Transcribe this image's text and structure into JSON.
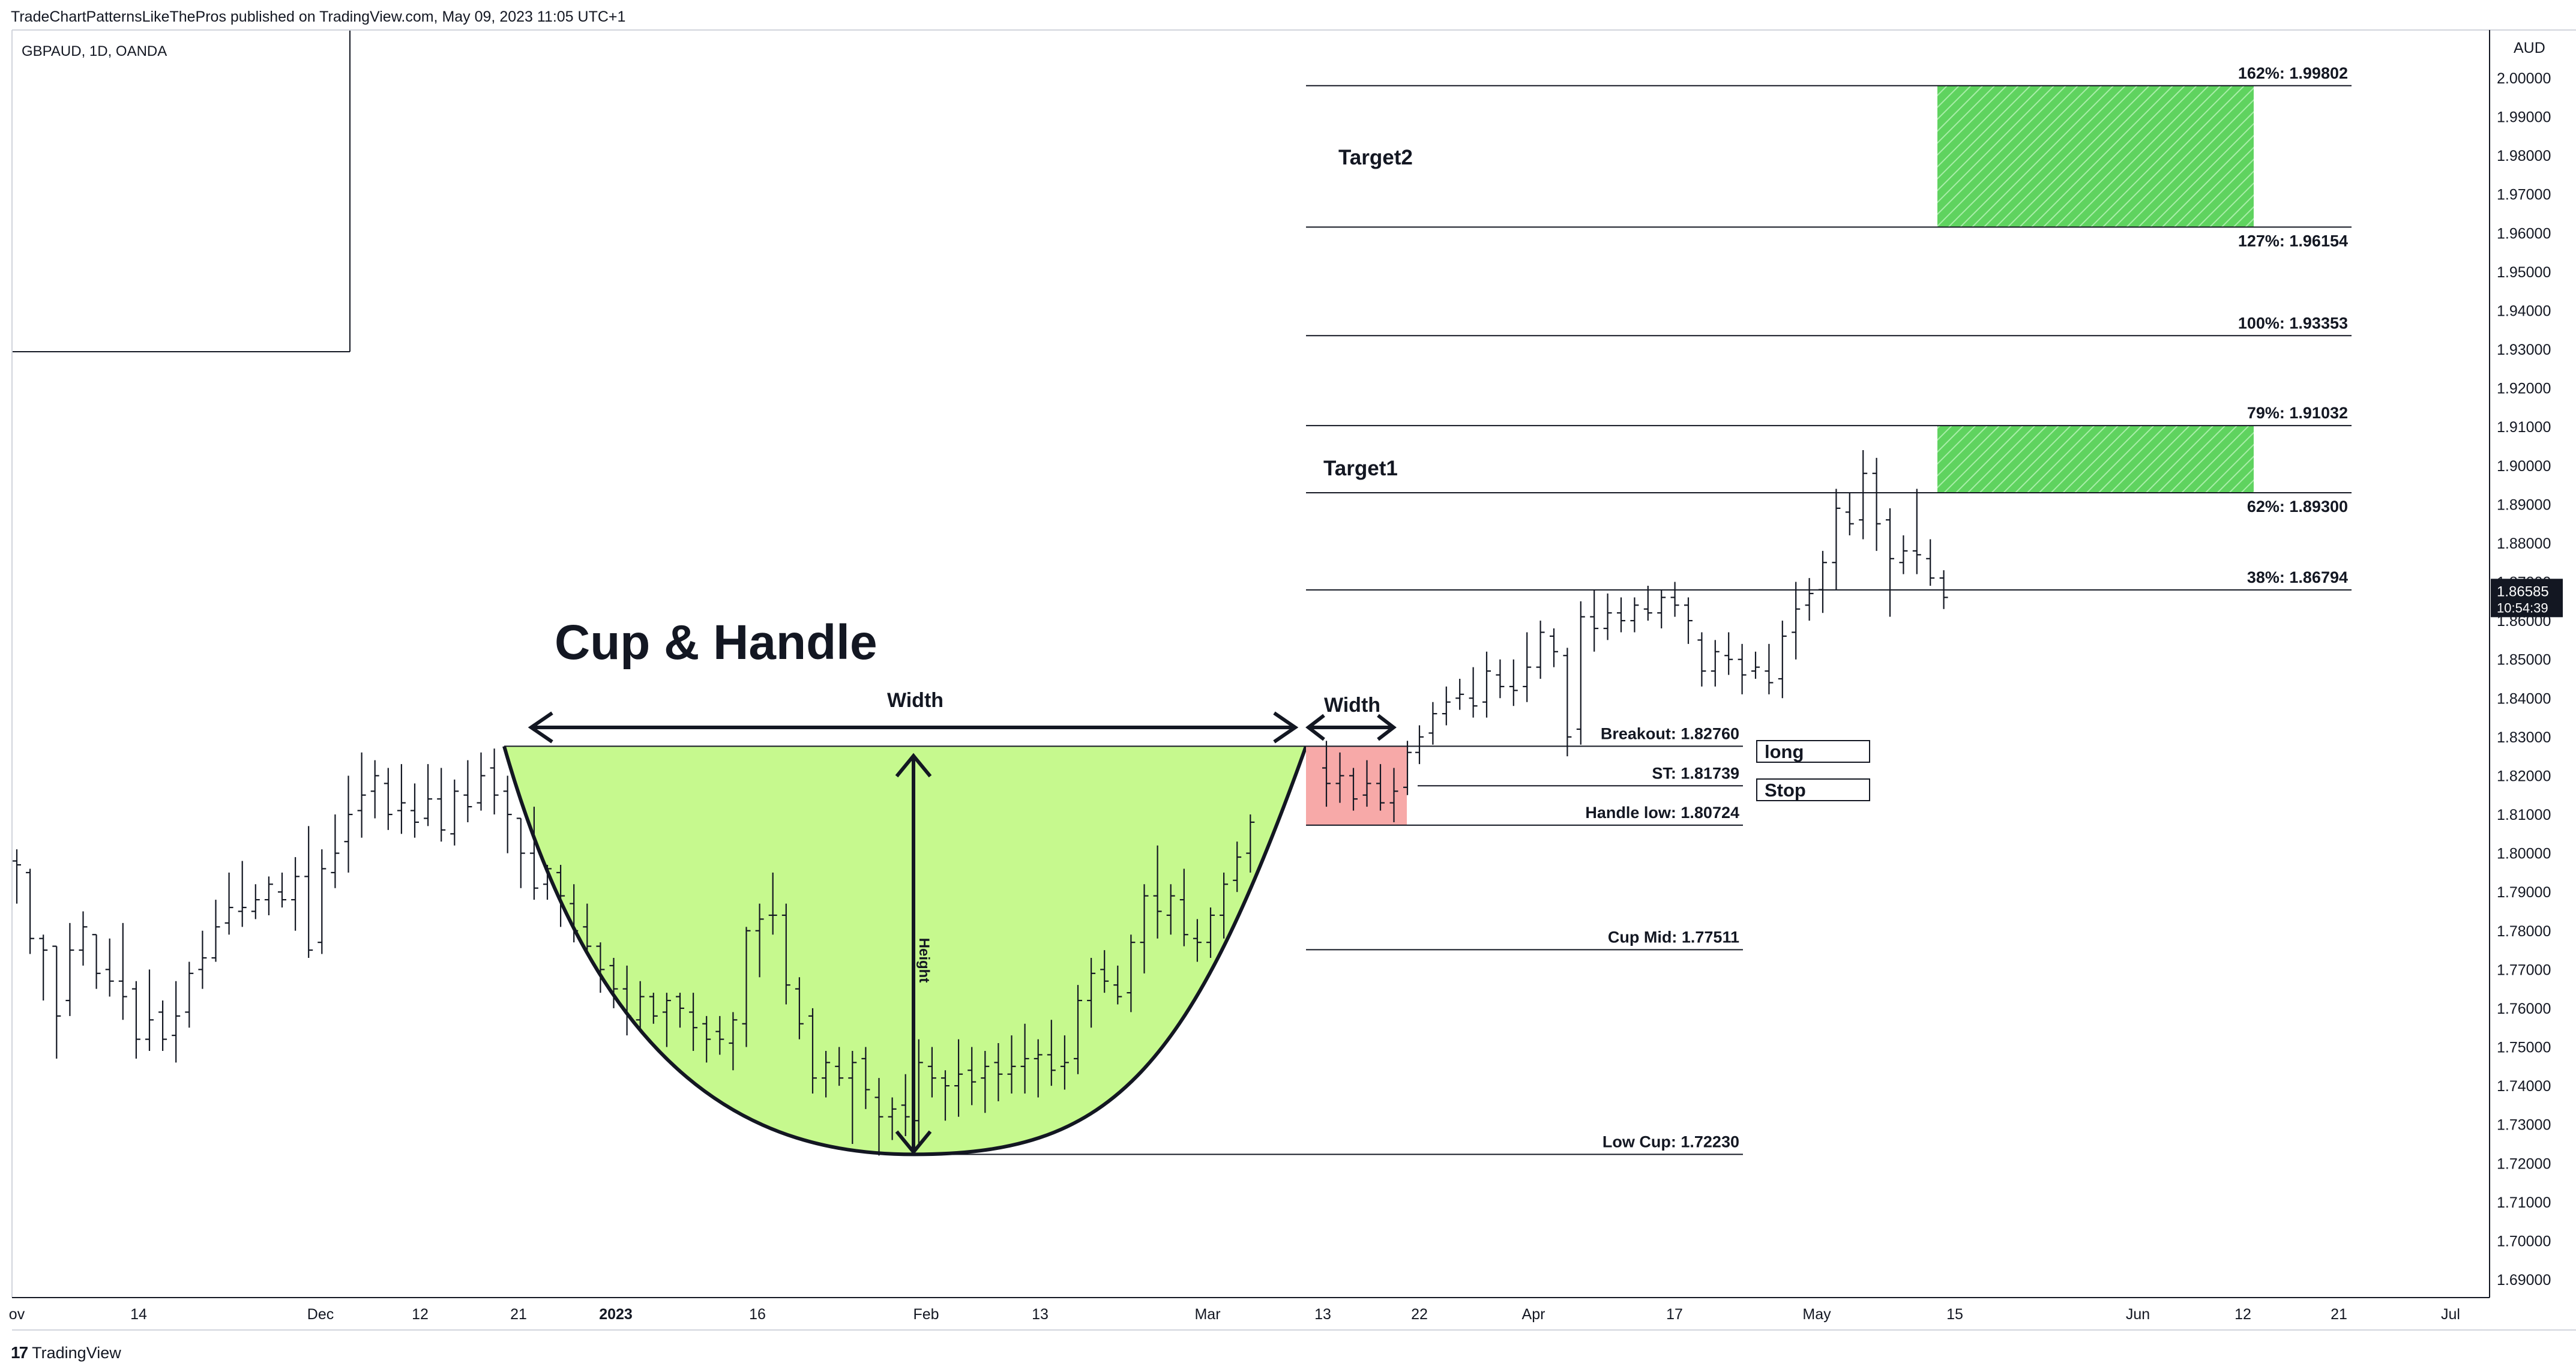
{
  "header": {
    "published_by": "TradeChartPatternsLikeThePros published on TradingView.com, May 09, 2023 11:05 UTC+1"
  },
  "symbol": "GBPAUD, 1D, OANDA",
  "footer": {
    "logo_text": "TradingView",
    "logo_icon": "tradingview-logo-icon"
  },
  "colors": {
    "cup_fill": "#c6f98e",
    "handle_fill": "#f7a9a8",
    "target_fill": "#5fd35f",
    "bar": "#131722",
    "price_badge": "#131722"
  },
  "chart_data": {
    "type": "bar",
    "title": "Cup & Handle",
    "currency": "AUD",
    "ylim": [
      1.68,
      2.01
    ],
    "y_ticks": [
      1.69,
      1.7,
      1.71,
      1.72,
      1.73,
      1.74,
      1.75,
      1.76,
      1.77,
      1.78,
      1.79,
      1.8,
      1.81,
      1.82,
      1.83,
      1.84,
      1.85,
      1.86,
      1.87,
      1.88,
      1.89,
      1.9,
      1.91,
      1.92,
      1.93,
      1.94,
      1.95,
      1.96,
      1.97,
      1.98,
      1.99,
      2.0
    ],
    "y_tick_labels": [
      "1.69000",
      "1.70000",
      "1.71000",
      "1.72000",
      "1.73000",
      "1.74000",
      "1.75000",
      "1.76000",
      "1.77000",
      "1.78000",
      "1.79000",
      "1.80000",
      "1.81000",
      "1.82000",
      "1.83000",
      "1.84000",
      "1.85000",
      "1.86000",
      "1.87000",
      "1.88000",
      "1.89000",
      "1.90000",
      "1.91000",
      "1.92000",
      "1.93000",
      "1.94000",
      "1.95000",
      "1.96000",
      "1.97000",
      "1.98000",
      "1.99000",
      "2.00000"
    ],
    "x_ticks": [
      {
        "label": "ov",
        "bold": false
      },
      {
        "label": "14",
        "bold": false
      },
      {
        "label": "Dec",
        "bold": false
      },
      {
        "label": "12",
        "bold": false
      },
      {
        "label": "21",
        "bold": false
      },
      {
        "label": "2023",
        "bold": true
      },
      {
        "label": "16",
        "bold": false
      },
      {
        "label": "Feb",
        "bold": false
      },
      {
        "label": "13",
        "bold": false
      },
      {
        "label": "Mar",
        "bold": false
      },
      {
        "label": "13",
        "bold": false
      },
      {
        "label": "22",
        "bold": false
      },
      {
        "label": "Apr",
        "bold": false
      },
      {
        "label": "17",
        "bold": false
      },
      {
        "label": "May",
        "bold": false
      },
      {
        "label": "15",
        "bold": false
      },
      {
        "label": "Jun",
        "bold": false
      },
      {
        "label": "12",
        "bold": false
      },
      {
        "label": "21",
        "bold": false
      },
      {
        "label": "Jul",
        "bold": false
      }
    ],
    "last_price": "1.86585",
    "countdown": "10:54:39",
    "levels": [
      {
        "label": "162%: 1.99802",
        "value": 1.99802
      },
      {
        "label": "127%: 1.96154",
        "value": 1.96154
      },
      {
        "label": "100%: 1.93353",
        "value": 1.93353
      },
      {
        "label": "79%: 1.91032",
        "value": 1.91032
      },
      {
        "label": "62%: 1.89300",
        "value": 1.893
      },
      {
        "label": "38%: 1.86794",
        "value": 1.86794
      },
      {
        "label": "Breakout: 1.82760",
        "value": 1.8276
      },
      {
        "label": "ST: 1.81739",
        "value": 1.81739
      },
      {
        "label": "Handle low: 1.80724",
        "value": 1.80724
      },
      {
        "label": "Cup Mid: 1.77511",
        "value": 1.77511
      },
      {
        "label": "Low Cup: 1.72230",
        "value": 1.7223
      }
    ],
    "annotations": {
      "target1": "Target1",
      "target2": "Target2",
      "long": "long",
      "stop": "Stop",
      "cup_width": "Width",
      "handle_width": "Width",
      "height": "Height"
    },
    "bars": [
      [
        1.798,
        1.787,
        1.801,
        1.797
      ],
      [
        1.795,
        1.774,
        1.796,
        1.778
      ],
      [
        1.778,
        1.762,
        1.779,
        1.775
      ],
      [
        1.776,
        1.747,
        1.776,
        1.758
      ],
      [
        1.762,
        1.758,
        1.782,
        1.775
      ],
      [
        1.775,
        1.771,
        1.785,
        1.781
      ],
      [
        1.779,
        1.765,
        1.779,
        1.769
      ],
      [
        1.77,
        1.763,
        1.778,
        1.767
      ],
      [
        1.767,
        1.757,
        1.782,
        1.763
      ],
      [
        1.765,
        1.747,
        1.767,
        1.752
      ],
      [
        1.752,
        1.749,
        1.77,
        1.757
      ],
      [
        1.759,
        1.749,
        1.762,
        1.752
      ],
      [
        1.753,
        1.746,
        1.767,
        1.758
      ],
      [
        1.759,
        1.755,
        1.772,
        1.769
      ],
      [
        1.77,
        1.765,
        1.78,
        1.773
      ],
      [
        1.773,
        1.772,
        1.788,
        1.781
      ],
      [
        1.782,
        1.779,
        1.795,
        1.786
      ],
      [
        1.785,
        1.781,
        1.798,
        1.786
      ],
      [
        1.785,
        1.783,
        1.792,
        1.788
      ],
      [
        1.788,
        1.784,
        1.794,
        1.792
      ],
      [
        1.79,
        1.786,
        1.795,
        1.788
      ],
      [
        1.788,
        1.78,
        1.799,
        1.794
      ],
      [
        1.794,
        1.773,
        1.807,
        1.775
      ],
      [
        1.777,
        1.774,
        1.801,
        1.796
      ],
      [
        1.795,
        1.791,
        1.81,
        1.8
      ],
      [
        1.803,
        1.795,
        1.82,
        1.81
      ],
      [
        1.811,
        1.804,
        1.826,
        1.815
      ],
      [
        1.816,
        1.809,
        1.824,
        1.82
      ],
      [
        1.818,
        1.806,
        1.822,
        1.81
      ],
      [
        1.811,
        1.805,
        1.823,
        1.813
      ],
      [
        1.811,
        1.804,
        1.818,
        1.808
      ],
      [
        1.809,
        1.807,
        1.823,
        1.814
      ],
      [
        1.814,
        1.803,
        1.822,
        1.806
      ],
      [
        1.805,
        1.802,
        1.819,
        1.816
      ],
      [
        1.815,
        1.808,
        1.824,
        1.812
      ],
      [
        1.813,
        1.811,
        1.826,
        1.82
      ],
      [
        1.822,
        1.81,
        1.827,
        1.815
      ],
      [
        1.816,
        1.8,
        1.82,
        1.81
      ],
      [
        1.809,
        1.791,
        1.809,
        1.8
      ],
      [
        1.8,
        1.788,
        1.812,
        1.791
      ],
      [
        1.792,
        1.788,
        1.797,
        1.796
      ],
      [
        1.795,
        1.781,
        1.797,
        1.789
      ],
      [
        1.787,
        1.777,
        1.792,
        1.78
      ],
      [
        1.781,
        1.774,
        1.787,
        1.776
      ],
      [
        1.776,
        1.764,
        1.777,
        1.77
      ],
      [
        1.771,
        1.76,
        1.773,
        1.765
      ],
      [
        1.765,
        1.753,
        1.771,
        1.758
      ],
      [
        1.757,
        1.754,
        1.767,
        1.763
      ],
      [
        1.763,
        1.756,
        1.764,
        1.758
      ],
      [
        1.759,
        1.75,
        1.764,
        1.762
      ],
      [
        1.763,
        1.755,
        1.764,
        1.76
      ],
      [
        1.759,
        1.749,
        1.764,
        1.755
      ],
      [
        1.756,
        1.746,
        1.758,
        1.752
      ],
      [
        1.754,
        1.748,
        1.758,
        1.752
      ],
      [
        1.751,
        1.744,
        1.759,
        1.757
      ],
      [
        1.756,
        1.75,
        1.781,
        1.78
      ],
      [
        1.78,
        1.768,
        1.787,
        1.783
      ],
      [
        1.784,
        1.779,
        1.795,
        1.784
      ],
      [
        1.784,
        1.761,
        1.787,
        1.766
      ],
      [
        1.765,
        1.752,
        1.768,
        1.756
      ],
      [
        1.758,
        1.738,
        1.76,
        1.742
      ],
      [
        1.742,
        1.737,
        1.749,
        1.746
      ],
      [
        1.745,
        1.74,
        1.75,
        1.742
      ],
      [
        1.742,
        1.725,
        1.749,
        1.746
      ],
      [
        1.747,
        1.734,
        1.75,
        1.739
      ],
      [
        1.737,
        1.722,
        1.742,
        1.732
      ],
      [
        1.732,
        1.726,
        1.737,
        1.734
      ],
      [
        1.735,
        1.727,
        1.743,
        1.732
      ],
      [
        1.731,
        1.725,
        1.752,
        1.746
      ],
      [
        1.745,
        1.737,
        1.75,
        1.742
      ],
      [
        1.742,
        1.731,
        1.744,
        1.74
      ],
      [
        1.74,
        1.732,
        1.752,
        1.743
      ],
      [
        1.744,
        1.735,
        1.75,
        1.741
      ],
      [
        1.742,
        1.733,
        1.749,
        1.745
      ],
      [
        1.746,
        1.736,
        1.751,
        1.743
      ],
      [
        1.743,
        1.738,
        1.753,
        1.745
      ],
      [
        1.745,
        1.738,
        1.756,
        1.747
      ],
      [
        1.747,
        1.737,
        1.752,
        1.748
      ],
      [
        1.748,
        1.74,
        1.757,
        1.744
      ],
      [
        1.745,
        1.739,
        1.753,
        1.746
      ],
      [
        1.747,
        1.743,
        1.766,
        1.762
      ],
      [
        1.762,
        1.755,
        1.773,
        1.769
      ],
      [
        1.77,
        1.764,
        1.775,
        1.767
      ],
      [
        1.766,
        1.761,
        1.771,
        1.763
      ],
      [
        1.764,
        1.759,
        1.779,
        1.777
      ],
      [
        1.777,
        1.769,
        1.792,
        1.789
      ],
      [
        1.789,
        1.778,
        1.802,
        1.785
      ],
      [
        1.784,
        1.779,
        1.792,
        1.789
      ],
      [
        1.788,
        1.776,
        1.796,
        1.779
      ],
      [
        1.778,
        1.772,
        1.783,
        1.777
      ],
      [
        1.777,
        1.773,
        1.786,
        1.784
      ],
      [
        1.784,
        1.778,
        1.795,
        1.792
      ],
      [
        1.793,
        1.79,
        1.803,
        1.799
      ],
      [
        1.8,
        1.795,
        1.81,
        1.808
      ],
      [
        1.822,
        1.812,
        1.829,
        1.818
      ],
      [
        1.818,
        1.813,
        1.826,
        1.82
      ],
      [
        1.82,
        1.811,
        1.822,
        1.814
      ],
      [
        1.815,
        1.812,
        1.824,
        1.818
      ],
      [
        1.818,
        1.811,
        1.823,
        1.813
      ],
      [
        1.813,
        1.808,
        1.822,
        1.816
      ],
      [
        1.817,
        1.815,
        1.829,
        1.826
      ],
      [
        1.826,
        1.823,
        1.833,
        1.83
      ],
      [
        1.831,
        1.828,
        1.839,
        1.836
      ],
      [
        1.836,
        1.833,
        1.843,
        1.839
      ],
      [
        1.84,
        1.837,
        1.845,
        1.841
      ],
      [
        1.84,
        1.835,
        1.848,
        1.838
      ],
      [
        1.839,
        1.835,
        1.852,
        1.847
      ],
      [
        1.846,
        1.84,
        1.85,
        1.843
      ],
      [
        1.843,
        1.838,
        1.85,
        1.842
      ],
      [
        1.843,
        1.839,
        1.857,
        1.848
      ],
      [
        1.848,
        1.845,
        1.86,
        1.857
      ],
      [
        1.856,
        1.848,
        1.858,
        1.852
      ],
      [
        1.851,
        1.825,
        1.853,
        1.83
      ],
      [
        1.832,
        1.828,
        1.865,
        1.861
      ],
      [
        1.861,
        1.852,
        1.868,
        1.858
      ],
      [
        1.858,
        1.855,
        1.867,
        1.862
      ],
      [
        1.862,
        1.857,
        1.866,
        1.86
      ],
      [
        1.86,
        1.857,
        1.866,
        1.864
      ],
      [
        1.863,
        1.86,
        1.869,
        1.862
      ],
      [
        1.862,
        1.858,
        1.868,
        1.866
      ],
      [
        1.866,
        1.861,
        1.87,
        1.864
      ],
      [
        1.864,
        1.854,
        1.866,
        1.86
      ],
      [
        1.855,
        1.843,
        1.857,
        1.847
      ],
      [
        1.847,
        1.843,
        1.855,
        1.852
      ],
      [
        1.851,
        1.846,
        1.857,
        1.85
      ],
      [
        1.85,
        1.841,
        1.854,
        1.846
      ],
      [
        1.847,
        1.845,
        1.852,
        1.848
      ],
      [
        1.847,
        1.841,
        1.854,
        1.844
      ],
      [
        1.845,
        1.84,
        1.86,
        1.856
      ],
      [
        1.857,
        1.85,
        1.87,
        1.863
      ],
      [
        1.864,
        1.86,
        1.871,
        1.867
      ],
      [
        1.868,
        1.862,
        1.878,
        1.875
      ],
      [
        1.875,
        1.868,
        1.894,
        1.889
      ],
      [
        1.888,
        1.882,
        1.893,
        1.885
      ],
      [
        1.886,
        1.881,
        1.904,
        1.898
      ],
      [
        1.898,
        1.878,
        1.902,
        1.885
      ],
      [
        1.886,
        1.861,
        1.889,
        1.876
      ],
      [
        1.875,
        1.872,
        1.882,
        1.878
      ],
      [
        1.878,
        1.872,
        1.894,
        1.877
      ],
      [
        1.876,
        1.869,
        1.881,
        1.871
      ],
      [
        1.871,
        1.863,
        1.873,
        1.866
      ],
      [
        1.866,
        1.86,
        1.871,
        1.862
      ],
      [
        1.862,
        1.859,
        1.868,
        1.865
      ]
    ]
  }
}
